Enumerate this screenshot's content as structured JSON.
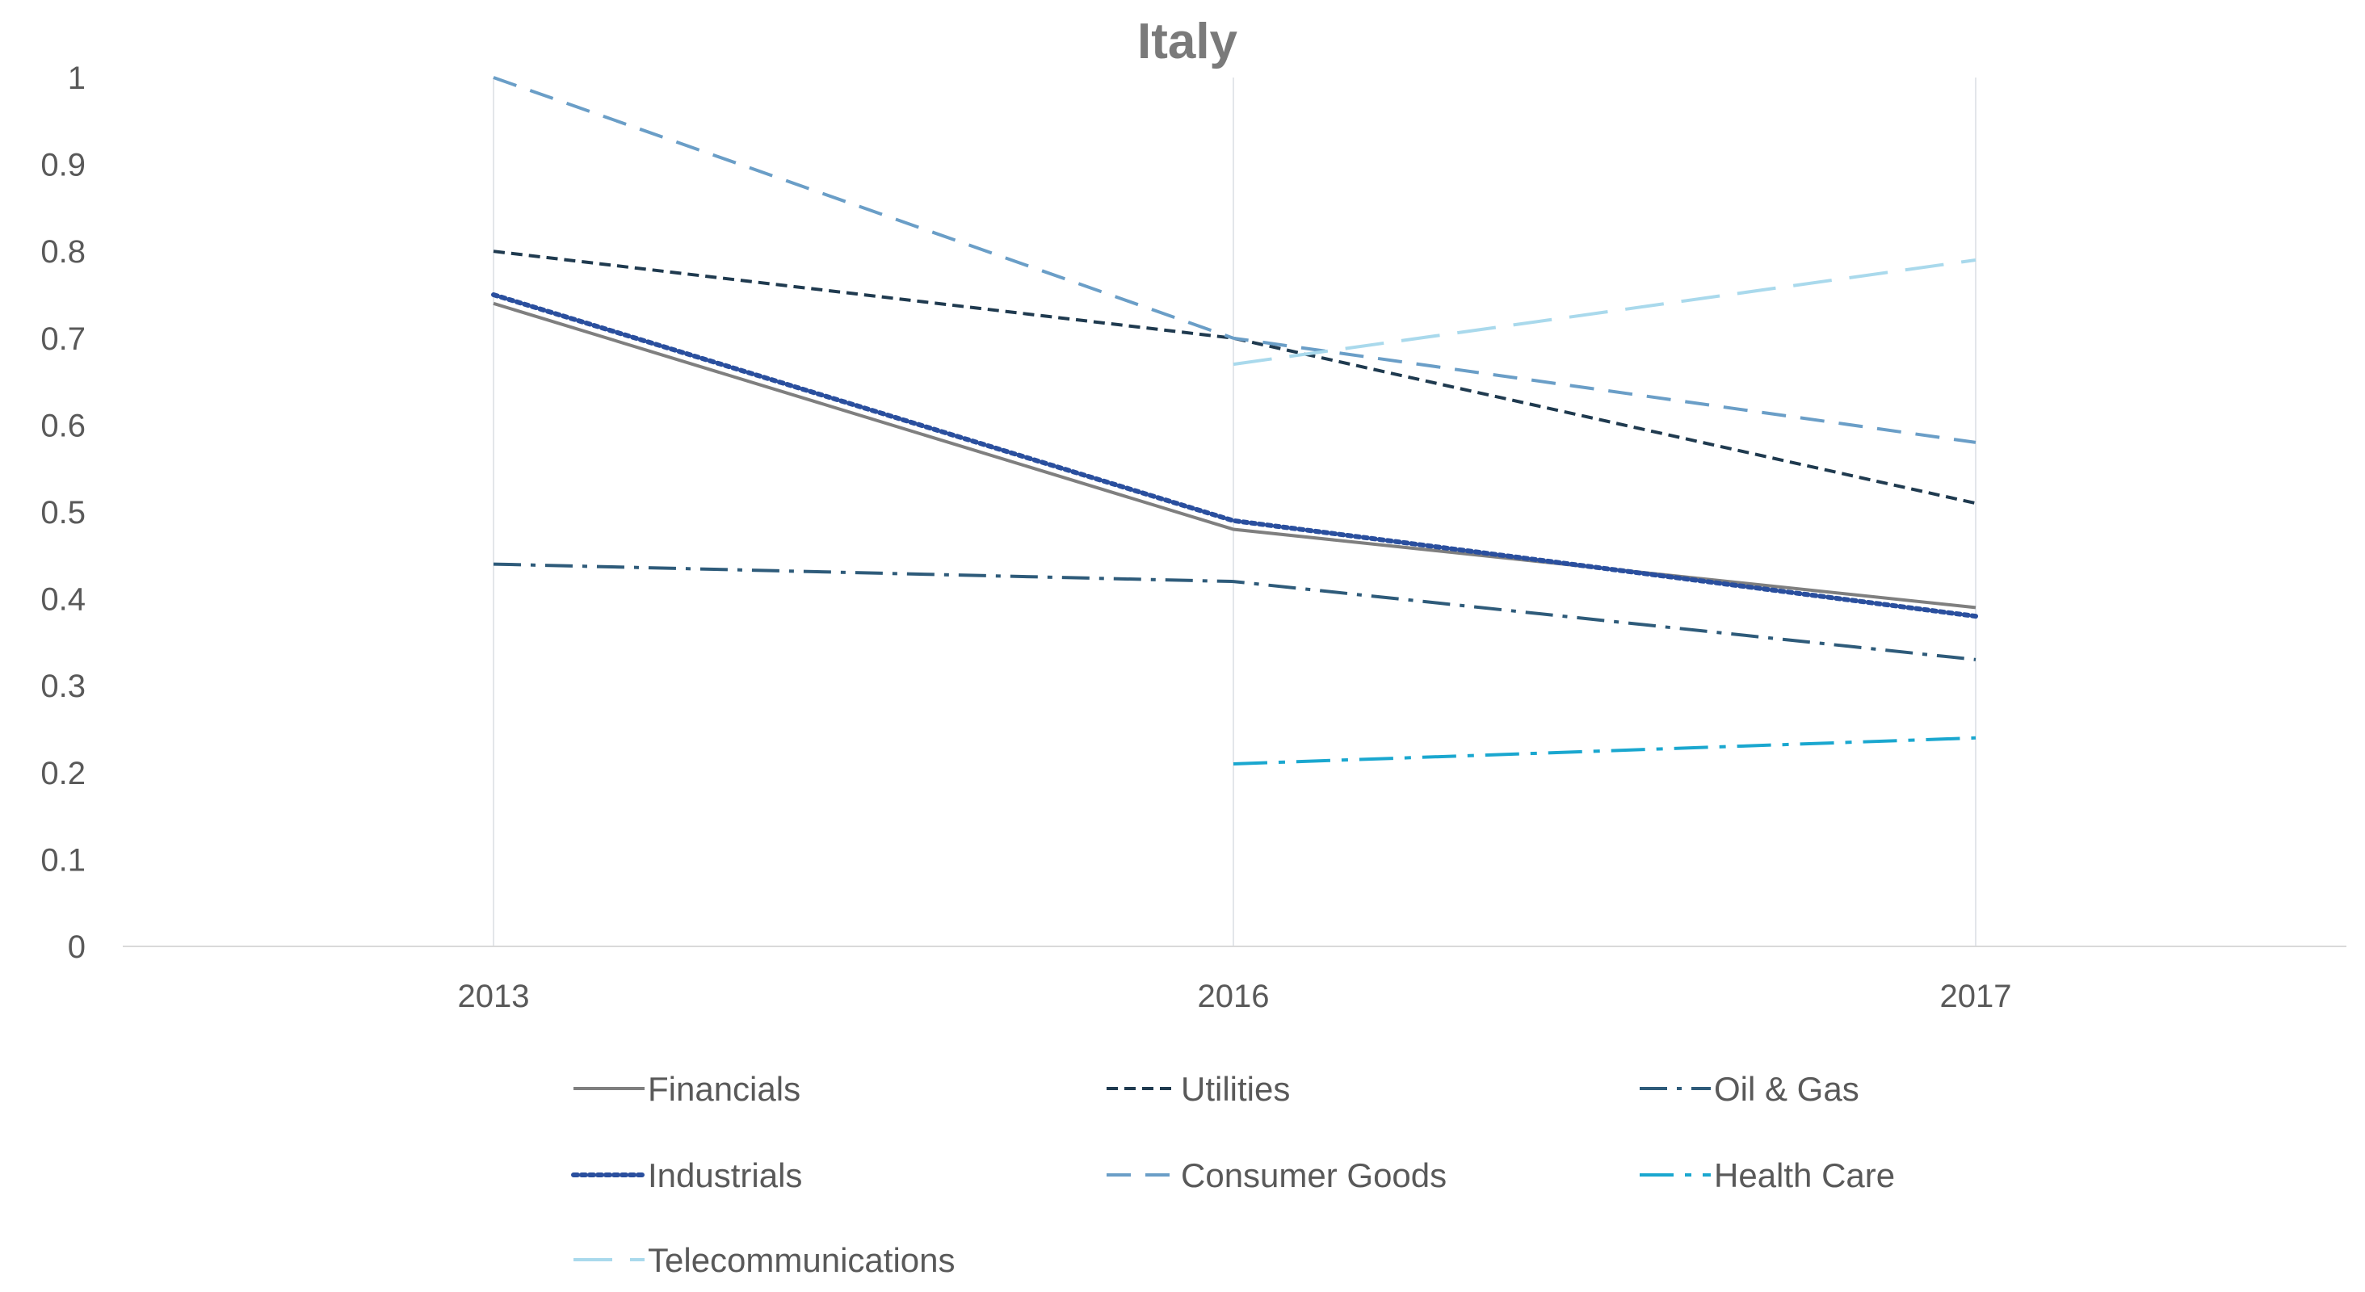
{
  "chart_data": {
    "type": "line",
    "title": "Italy",
    "xlabel": "",
    "ylabel": "",
    "categories": [
      "2013",
      "2016",
      "2017"
    ],
    "ylim": [
      0,
      1
    ],
    "yticks": [
      "0",
      "0.1",
      "0.2",
      "0.3",
      "0.4",
      "0.5",
      "0.6",
      "0.7",
      "0.8",
      "0.9",
      "1"
    ],
    "grid": "vertical",
    "legend_position": "bottom",
    "series": [
      {
        "name": "Financials",
        "values": [
          0.74,
          0.48,
          0.39
        ],
        "color": "#7f7f7f",
        "dash": "solid"
      },
      {
        "name": "Utilities",
        "values": [
          0.8,
          0.7,
          0.51
        ],
        "color": "#1f3a4f",
        "dash": "dash"
      },
      {
        "name": "Oil & Gas",
        "values": [
          0.44,
          0.42,
          0.33
        ],
        "color": "#2e5b7a",
        "dash": "dashdot"
      },
      {
        "name": "Industrials",
        "values": [
          0.75,
          0.49,
          0.38
        ],
        "color": "#2a4f9e",
        "dash": "dot"
      },
      {
        "name": "Consumer Goods",
        "values": [
          1.0,
          0.7,
          0.58
        ],
        "color": "#6a9ec7",
        "dash": "longdash"
      },
      {
        "name": "Health Care",
        "values": [
          null,
          0.21,
          0.24
        ],
        "color": "#1aa7cf",
        "dash": "longdashdot"
      },
      {
        "name": "Telecommunications",
        "values": [
          null,
          0.67,
          0.79
        ],
        "color": "#a9d9ec",
        "dash": "xlongdash"
      }
    ]
  }
}
